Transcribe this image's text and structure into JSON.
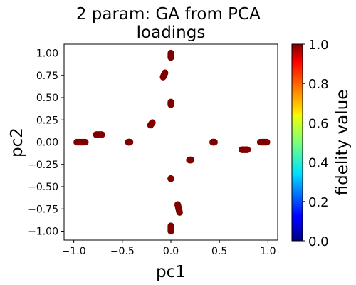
{
  "chart_data": {
    "type": "scatter",
    "title": "2 param:  GA from PCA\nloadings",
    "xlabel": "pc1",
    "ylabel": "pc2",
    "xlim": [
      -1.1,
      1.1
    ],
    "ylim": [
      -1.1,
      1.1
    ],
    "x_ticks": [
      -1.0,
      -0.5,
      0.0,
      0.5,
      1.0
    ],
    "x_tick_labels": [
      "−1.0",
      "−0.5",
      "0.0",
      "0.5",
      "1.0"
    ],
    "y_ticks": [
      1.0,
      0.75,
      0.5,
      0.25,
      0.0,
      -0.25,
      -0.5,
      -0.75,
      -1.0
    ],
    "y_tick_labels": [
      "1.00",
      "0.75",
      "0.50",
      "0.25",
      "0.00",
      "−0.25",
      "−0.50",
      "−0.75",
      "−1.00"
    ],
    "grid": false,
    "colormap": "jet",
    "marker_color": "#800000",
    "colorbar": {
      "label": "fidelity value",
      "range": [
        0.0,
        1.0
      ],
      "ticks": [
        0.0,
        0.2,
        0.4,
        0.6,
        0.8,
        1.0
      ],
      "tick_labels": [
        "0.0",
        "0.2",
        "0.4",
        "0.6",
        "0.8",
        "1.0"
      ]
    },
    "clusters": [
      {
        "x": [
          -0.97,
          -0.88
        ],
        "y": [
          0.0,
          0.0
        ]
      },
      {
        "x": [
          -0.77,
          -0.71
        ],
        "y": [
          0.085,
          0.085
        ]
      },
      {
        "x": [
          -0.44,
          -0.42
        ],
        "y": [
          0.0,
          0.0
        ]
      },
      {
        "x": [
          -0.21,
          -0.19
        ],
        "y": [
          0.19,
          0.22
        ]
      },
      {
        "x": [
          0.0,
          0.0
        ],
        "y": [
          0.95,
          1.0
        ]
      },
      {
        "x": [
          -0.08,
          -0.06
        ],
        "y": [
          0.73,
          0.78
        ]
      },
      {
        "x": [
          0.0,
          0.0
        ],
        "y": [
          0.42,
          0.45
        ]
      },
      {
        "x": [
          0.0,
          0.0
        ],
        "y": [
          -0.41,
          -0.41
        ]
      },
      {
        "x": [
          0.07,
          0.09
        ],
        "y": [
          -0.7,
          -0.79
        ]
      },
      {
        "x": [
          0.0,
          0.0
        ],
        "y": [
          -0.94,
          -1.0
        ]
      },
      {
        "x": [
          0.19,
          0.21
        ],
        "y": [
          -0.2,
          -0.2
        ]
      },
      {
        "x": [
          0.43,
          0.45
        ],
        "y": [
          0.0,
          0.0
        ]
      },
      {
        "x": [
          0.73,
          0.79
        ],
        "y": [
          -0.085,
          -0.085
        ]
      },
      {
        "x": [
          0.92,
          0.99
        ],
        "y": [
          0.0,
          0.0
        ]
      }
    ]
  }
}
